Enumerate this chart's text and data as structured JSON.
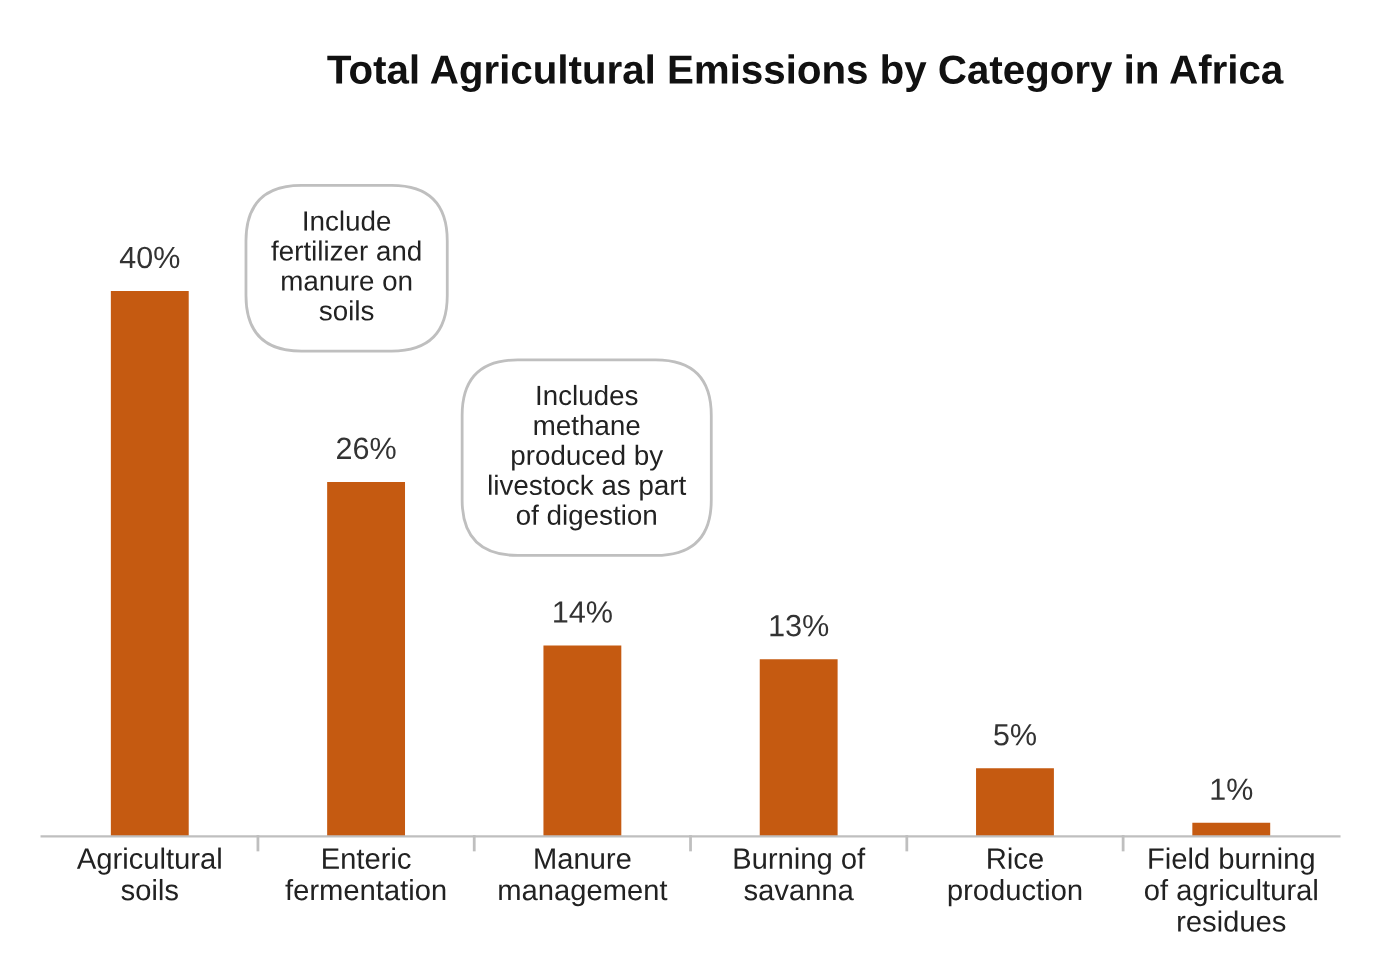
{
  "chart_data": {
    "type": "bar",
    "title": "Total Agricultural Emissions by Category in Africa",
    "categories": [
      "Agricultural\nsoils",
      "Enteric\nfermentation",
      "Manure\nmanagement",
      "Burning of\nsavanna",
      "Rice\nproduction",
      "Field burning\nof agricultural\nresidues"
    ],
    "values": [
      40,
      26,
      14,
      13,
      5,
      1
    ],
    "value_labels": [
      "40%",
      "26%",
      "14%",
      "13%",
      "5%",
      "1%"
    ],
    "color": "#c55a11",
    "annotations": [
      "Include\nfertilizer and\nmanure on\nsoils",
      "Includes\nmethane\nproduced by\nlivestock as part\nof digestion"
    ]
  }
}
